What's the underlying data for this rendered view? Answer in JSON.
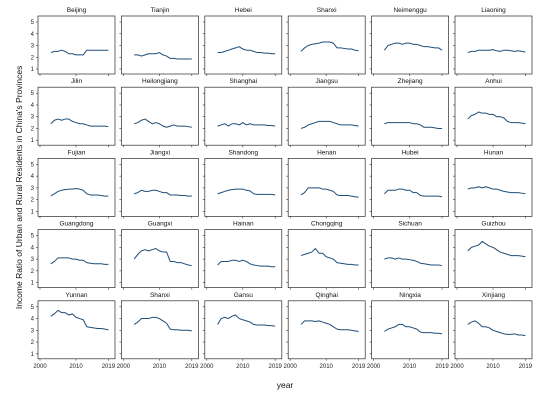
{
  "chart_data": {
    "type": "line",
    "xlabel": "year",
    "ylabel": "Income Ratio of Urban and Rural Residents in China's Provinces",
    "xlim": [
      2000,
      2020
    ],
    "ylim": [
      1,
      5
    ],
    "x_ticks": [
      2000,
      2010,
      2019
    ],
    "y_ticks": [
      1,
      2,
      3,
      4,
      5
    ],
    "grid": false,
    "x": [
      2003,
      2004,
      2005,
      2006,
      2007,
      2008,
      2009,
      2010,
      2011,
      2012,
      2013,
      2014,
      2015,
      2016,
      2017,
      2018,
      2019
    ],
    "panels": [
      {
        "title": "Beijing",
        "values": [
          2.4,
          2.5,
          2.5,
          2.6,
          2.5,
          2.3,
          2.3,
          2.2,
          2.2,
          2.2,
          2.6,
          2.6,
          2.6,
          2.6,
          2.6,
          2.6,
          2.6
        ]
      },
      {
        "title": "Tianjin",
        "values": [
          2.2,
          2.2,
          2.1,
          2.2,
          2.3,
          2.3,
          2.3,
          2.4,
          2.2,
          2.1,
          1.9,
          1.9,
          1.85,
          1.85,
          1.85,
          1.85,
          1.85
        ]
      },
      {
        "title": "Hebei",
        "values": [
          2.4,
          2.4,
          2.5,
          2.6,
          2.7,
          2.8,
          2.9,
          2.7,
          2.6,
          2.6,
          2.5,
          2.4,
          2.4,
          2.35,
          2.35,
          2.3,
          2.3
        ]
      },
      {
        "title": "Shanxi",
        "values": [
          2.5,
          2.8,
          3.0,
          3.1,
          3.15,
          3.2,
          3.3,
          3.3,
          3.3,
          3.2,
          2.8,
          2.8,
          2.75,
          2.7,
          2.7,
          2.6,
          2.55
        ]
      },
      {
        "title": "Neimenggu",
        "values": [
          2.6,
          3.0,
          3.1,
          3.2,
          3.2,
          3.1,
          3.2,
          3.2,
          3.1,
          3.1,
          3.0,
          2.9,
          2.9,
          2.85,
          2.8,
          2.8,
          2.6
        ]
      },
      {
        "title": "Liaoning",
        "values": [
          2.4,
          2.5,
          2.5,
          2.6,
          2.6,
          2.6,
          2.6,
          2.65,
          2.55,
          2.5,
          2.6,
          2.6,
          2.55,
          2.5,
          2.55,
          2.5,
          2.45
        ]
      },
      {
        "title": "Jilin",
        "values": [
          2.4,
          2.7,
          2.8,
          2.7,
          2.8,
          2.8,
          2.6,
          2.5,
          2.4,
          2.4,
          2.3,
          2.2,
          2.2,
          2.2,
          2.2,
          2.2,
          2.15
        ]
      },
      {
        "title": "Heilongjiang",
        "values": [
          2.4,
          2.5,
          2.7,
          2.8,
          2.6,
          2.4,
          2.5,
          2.4,
          2.2,
          2.1,
          2.2,
          2.3,
          2.2,
          2.2,
          2.2,
          2.15,
          2.1
        ]
      },
      {
        "title": "Shanghai",
        "values": [
          2.2,
          2.3,
          2.4,
          2.2,
          2.4,
          2.4,
          2.3,
          2.5,
          2.3,
          2.4,
          2.3,
          2.3,
          2.3,
          2.3,
          2.25,
          2.25,
          2.2
        ]
      },
      {
        "title": "Jiangsu",
        "values": [
          2.0,
          2.1,
          2.3,
          2.4,
          2.5,
          2.6,
          2.6,
          2.6,
          2.6,
          2.5,
          2.4,
          2.3,
          2.3,
          2.3,
          2.3,
          2.25,
          2.2
        ]
      },
      {
        "title": "Zhejiang",
        "values": [
          2.4,
          2.5,
          2.5,
          2.5,
          2.5,
          2.5,
          2.5,
          2.5,
          2.4,
          2.4,
          2.3,
          2.1,
          2.1,
          2.1,
          2.05,
          2.0,
          2.0
        ]
      },
      {
        "title": "Anhui",
        "values": [
          2.8,
          3.1,
          3.2,
          3.4,
          3.3,
          3.3,
          3.2,
          3.2,
          3.0,
          3.0,
          2.9,
          2.6,
          2.5,
          2.5,
          2.5,
          2.45,
          2.4
        ]
      },
      {
        "title": "Fujian",
        "values": [
          2.3,
          2.5,
          2.7,
          2.8,
          2.85,
          2.9,
          2.9,
          2.95,
          2.9,
          2.8,
          2.5,
          2.4,
          2.4,
          2.4,
          2.35,
          2.3,
          2.3
        ]
      },
      {
        "title": "Jiangxi",
        "values": [
          2.5,
          2.6,
          2.8,
          2.7,
          2.7,
          2.8,
          2.8,
          2.7,
          2.6,
          2.6,
          2.4,
          2.4,
          2.4,
          2.35,
          2.35,
          2.3,
          2.3
        ]
      },
      {
        "title": "Shandong",
        "values": [
          2.5,
          2.6,
          2.7,
          2.8,
          2.85,
          2.9,
          2.9,
          2.9,
          2.8,
          2.75,
          2.5,
          2.45,
          2.45,
          2.45,
          2.45,
          2.45,
          2.4
        ]
      },
      {
        "title": "Henan",
        "values": [
          2.4,
          2.6,
          3.0,
          3.0,
          3.0,
          3.0,
          2.9,
          2.9,
          2.8,
          2.7,
          2.4,
          2.35,
          2.35,
          2.35,
          2.3,
          2.25,
          2.2
        ]
      },
      {
        "title": "Hubei",
        "values": [
          2.5,
          2.8,
          2.8,
          2.8,
          2.9,
          2.9,
          2.8,
          2.8,
          2.6,
          2.6,
          2.35,
          2.3,
          2.3,
          2.3,
          2.3,
          2.3,
          2.25
        ]
      },
      {
        "title": "Hunan",
        "values": [
          2.9,
          3.0,
          3.0,
          3.1,
          3.0,
          3.1,
          3.0,
          2.9,
          2.9,
          2.8,
          2.7,
          2.65,
          2.6,
          2.6,
          2.6,
          2.55,
          2.5
        ]
      },
      {
        "title": "Guangdong",
        "values": [
          2.6,
          2.8,
          3.1,
          3.1,
          3.1,
          3.1,
          3.0,
          3.0,
          2.9,
          2.9,
          2.7,
          2.65,
          2.6,
          2.6,
          2.6,
          2.55,
          2.55
        ]
      },
      {
        "title": "Guangxi",
        "values": [
          3.0,
          3.4,
          3.7,
          3.8,
          3.7,
          3.8,
          3.9,
          3.7,
          3.6,
          3.6,
          2.8,
          2.8,
          2.7,
          2.7,
          2.6,
          2.5,
          2.45
        ]
      },
      {
        "title": "Hainan",
        "values": [
          2.5,
          2.8,
          2.8,
          2.8,
          2.9,
          2.9,
          2.8,
          2.9,
          2.8,
          2.6,
          2.5,
          2.45,
          2.4,
          2.4,
          2.4,
          2.35,
          2.35
        ]
      },
      {
        "title": "Chongqing",
        "values": [
          3.3,
          3.4,
          3.5,
          3.6,
          3.9,
          3.5,
          3.5,
          3.2,
          3.1,
          3.0,
          2.7,
          2.65,
          2.6,
          2.55,
          2.55,
          2.5,
          2.5
        ]
      },
      {
        "title": "Sichuan",
        "values": [
          3.0,
          3.1,
          3.1,
          3.0,
          3.1,
          3.0,
          3.0,
          2.95,
          2.9,
          2.8,
          2.65,
          2.6,
          2.55,
          2.5,
          2.5,
          2.5,
          2.45
        ]
      },
      {
        "title": "Guizhou",
        "values": [
          3.7,
          4.0,
          4.1,
          4.2,
          4.5,
          4.3,
          4.1,
          4.0,
          3.8,
          3.6,
          3.5,
          3.4,
          3.3,
          3.3,
          3.3,
          3.25,
          3.2
        ]
      },
      {
        "title": "Yunnan",
        "values": [
          4.2,
          4.4,
          4.7,
          4.5,
          4.5,
          4.3,
          4.4,
          4.1,
          4.0,
          3.9,
          3.3,
          3.25,
          3.2,
          3.15,
          3.15,
          3.1,
          3.05
        ]
      },
      {
        "title": "Shanxi",
        "values": [
          3.5,
          3.7,
          4.0,
          4.0,
          4.0,
          4.1,
          4.1,
          4.0,
          3.8,
          3.6,
          3.1,
          3.05,
          3.05,
          3.0,
          3.0,
          3.0,
          2.95
        ]
      },
      {
        "title": "Gansu",
        "values": [
          3.5,
          4.0,
          4.1,
          4.0,
          4.2,
          4.3,
          4.0,
          3.9,
          3.8,
          3.7,
          3.5,
          3.45,
          3.45,
          3.45,
          3.4,
          3.4,
          3.35
        ]
      },
      {
        "title": "Qinghai",
        "values": [
          3.5,
          3.8,
          3.8,
          3.8,
          3.75,
          3.8,
          3.7,
          3.6,
          3.5,
          3.3,
          3.1,
          3.05,
          3.05,
          3.05,
          3.0,
          2.95,
          2.9
        ]
      },
      {
        "title": "Ningxia",
        "values": [
          2.9,
          3.1,
          3.2,
          3.3,
          3.5,
          3.5,
          3.3,
          3.3,
          3.2,
          3.1,
          2.85,
          2.8,
          2.8,
          2.8,
          2.75,
          2.75,
          2.7
        ]
      },
      {
        "title": "Xinjiang",
        "values": [
          3.5,
          3.7,
          3.8,
          3.6,
          3.3,
          3.3,
          3.2,
          3.0,
          2.9,
          2.8,
          2.7,
          2.65,
          2.65,
          2.7,
          2.6,
          2.6,
          2.55
        ]
      }
    ]
  }
}
